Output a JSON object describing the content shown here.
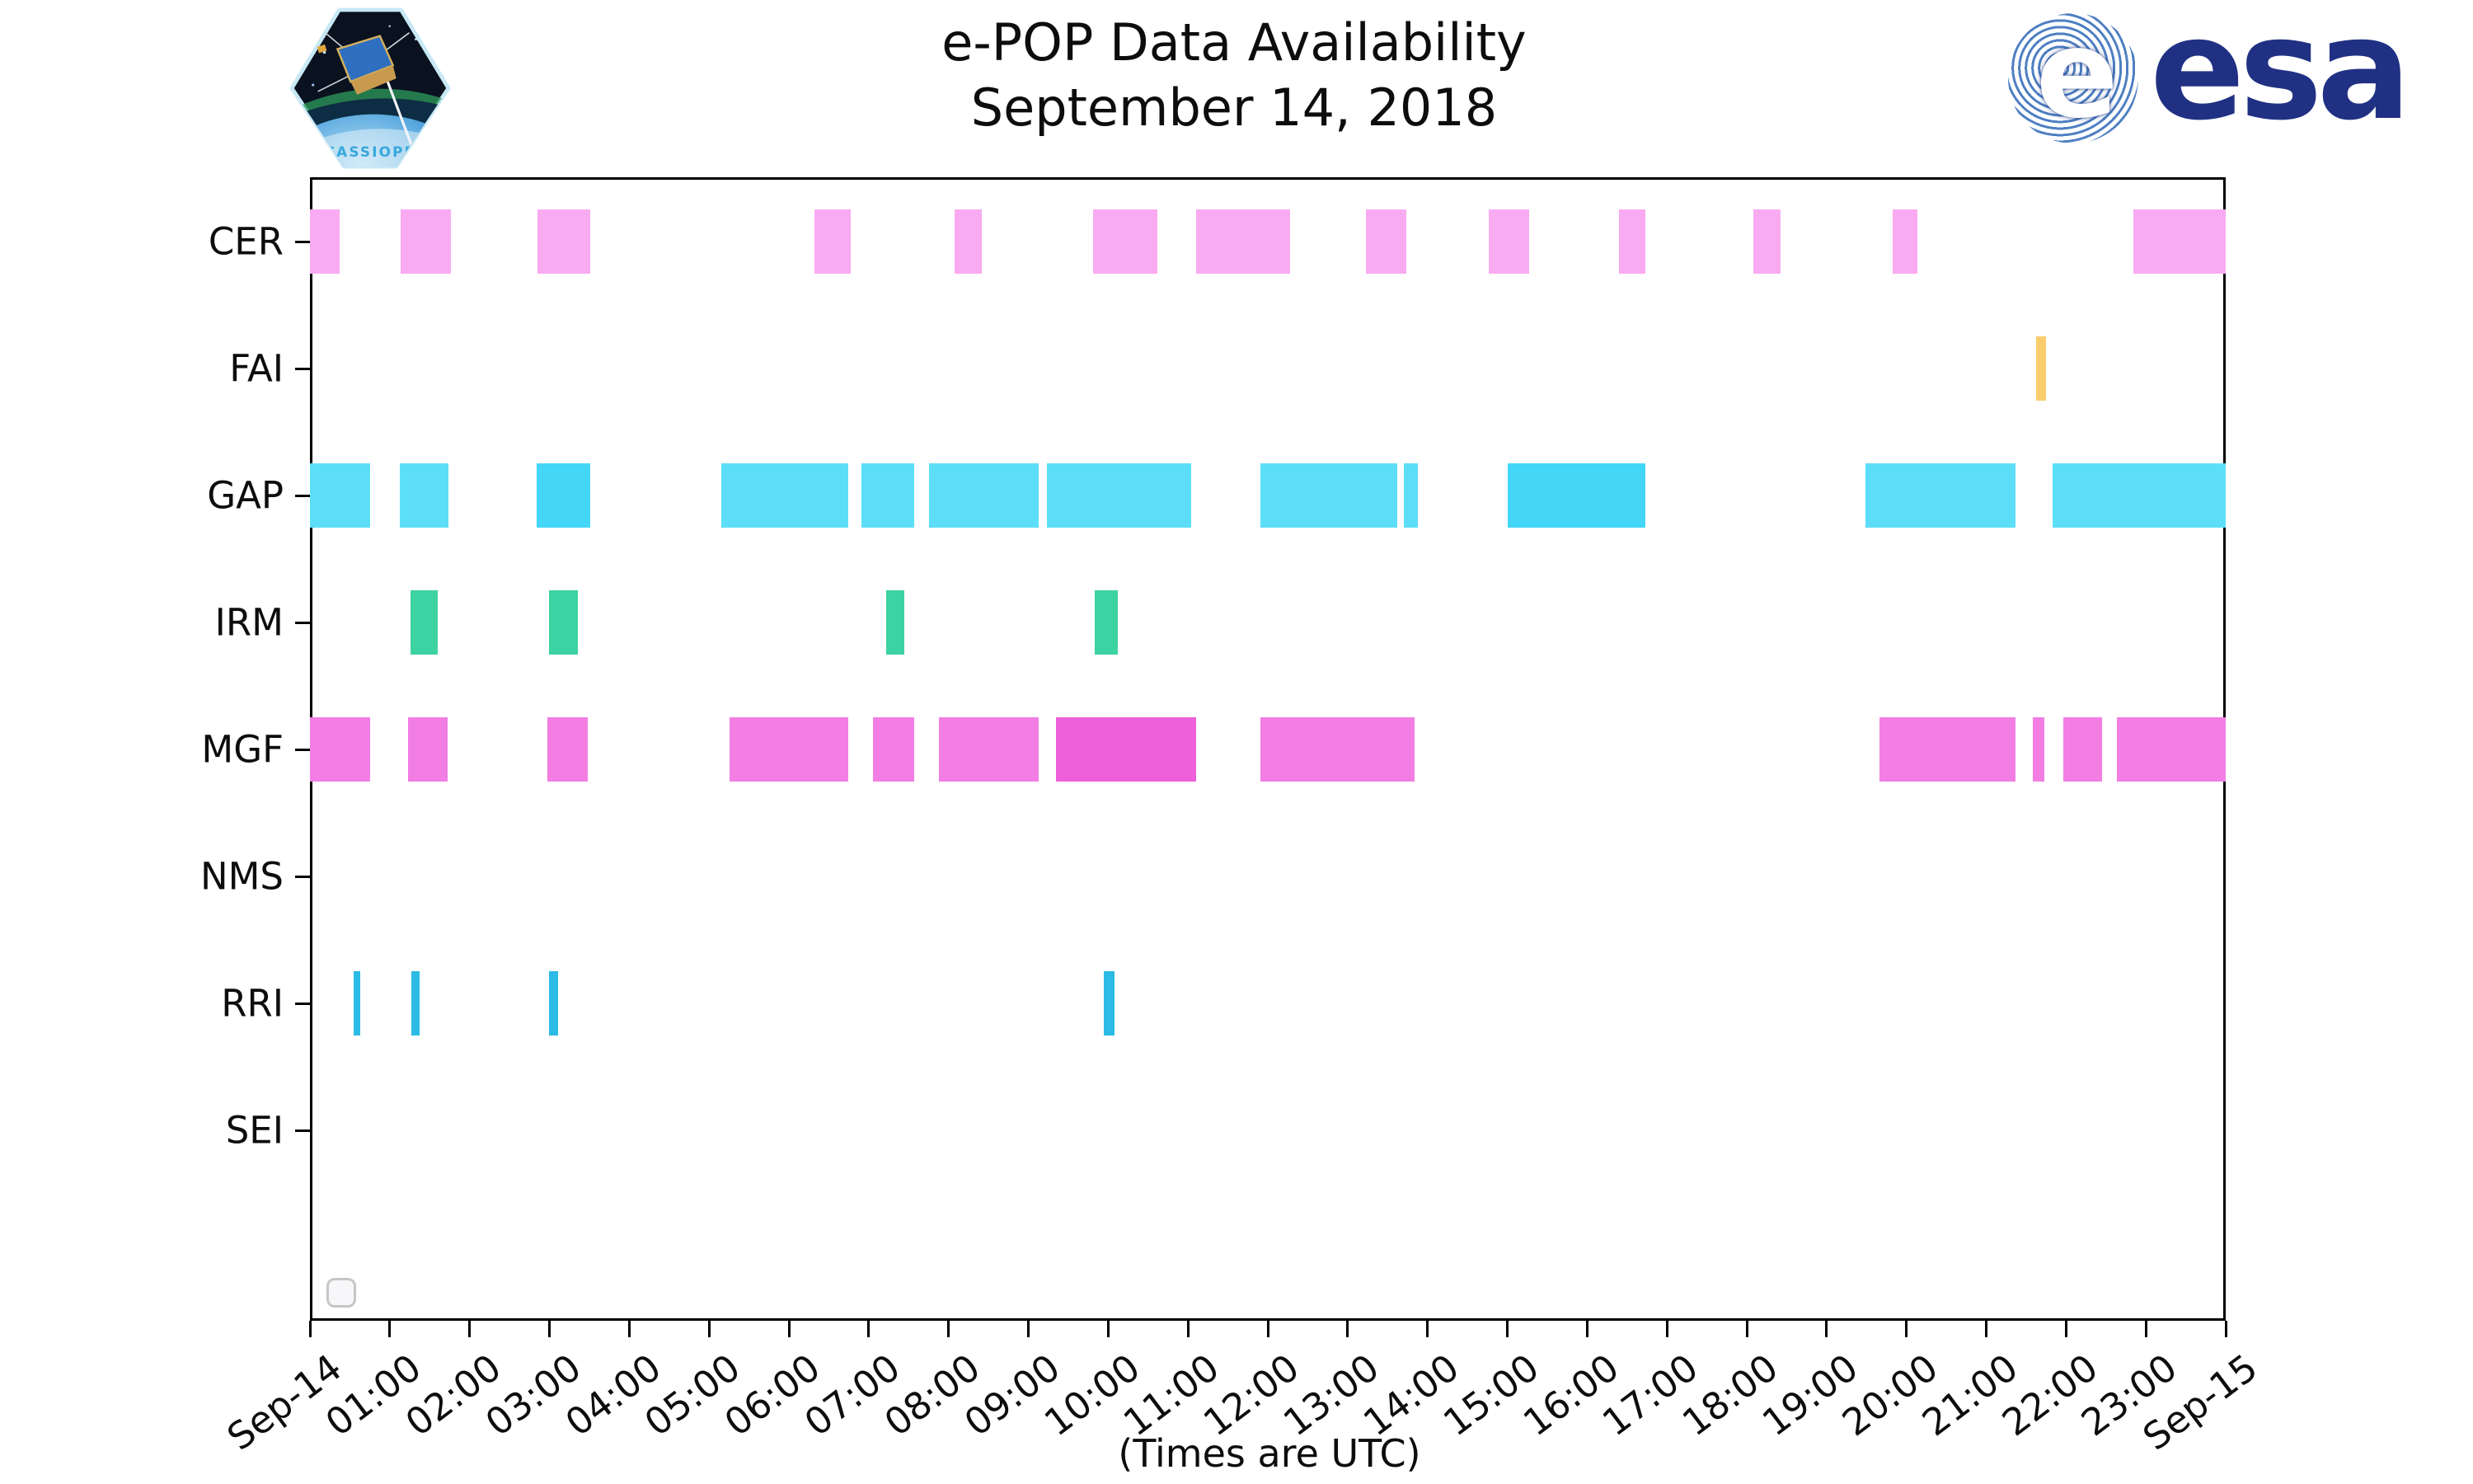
{
  "header": {
    "title_line1": "e-POP Data Availability",
    "title_line2": "September 14, 2018",
    "cassiope_patch_label": "CASSIOPE",
    "esa_logo_text": "esa"
  },
  "footer": {
    "caption": "(Times are UTC)"
  },
  "colors": {
    "esa_blue": "#203184",
    "esa_globe_stripe": "#4f7fc2",
    "axis_black": "#000000"
  },
  "chart_data": {
    "type": "timeline-availability (horizontal broken-bar / gantt chart, one row per instrument)",
    "title": "e-POP Data Availability — September 14, 2018",
    "x_axis": {
      "caption": "(Times are UTC)",
      "start_hour": 0,
      "end_hour": 24,
      "tick_interval_hours": 1,
      "tick_labels": [
        "Sep-14",
        "01:00",
        "02:00",
        "03:00",
        "04:00",
        "05:00",
        "06:00",
        "07:00",
        "08:00",
        "09:00",
        "10:00",
        "11:00",
        "12:00",
        "13:00",
        "14:00",
        "15:00",
        "16:00",
        "17:00",
        "18:00",
        "19:00",
        "20:00",
        "21:00",
        "22:00",
        "23:00",
        "Sep-15"
      ]
    },
    "y_axis": {
      "categories": [
        "CER",
        "FAI",
        "GAP",
        "IRM",
        "MGF",
        "NMS",
        "RRI",
        "SEI"
      ]
    },
    "grid": "off",
    "legend": "empty placeholder box at bottom-left of plot",
    "series": [
      {
        "instrument": "CER",
        "color": "#f9abf1",
        "intervals_hours": [
          [
            0.0,
            0.37
          ],
          [
            1.14,
            1.77
          ],
          [
            2.85,
            3.51
          ],
          [
            6.32,
            6.77
          ],
          [
            8.08,
            8.42
          ],
          [
            9.81,
            10.62
          ],
          [
            11.1,
            12.28
          ],
          [
            13.23,
            13.74
          ],
          [
            14.77,
            15.27
          ],
          [
            16.4,
            16.73
          ],
          [
            18.08,
            18.42
          ],
          [
            19.83,
            20.14
          ],
          [
            22.84,
            24.0
          ]
        ]
      },
      {
        "instrument": "FAI",
        "color": "#fbcd6d",
        "intervals_hours": [
          [
            21.62,
            21.75
          ]
        ]
      },
      {
        "instrument": "GAP",
        "color": "#5cdef8",
        "dark_color": "#44d6f6",
        "intervals_hours": [
          [
            0.0,
            0.75
          ],
          [
            1.12,
            1.73
          ],
          [
            2.84,
            3.51,
            "dark"
          ],
          [
            5.15,
            6.74
          ],
          [
            6.91,
            7.57
          ],
          [
            7.75,
            9.13
          ],
          [
            9.23,
            11.04
          ],
          [
            11.91,
            13.62
          ],
          [
            13.7,
            13.88
          ],
          [
            15.0,
            16.73,
            "dark"
          ],
          [
            19.49,
            21.37
          ],
          [
            21.83,
            24.0
          ]
        ]
      },
      {
        "instrument": "IRM",
        "color": "#3dd2a2",
        "intervals_hours": [
          [
            1.26,
            1.6
          ],
          [
            2.99,
            3.36
          ],
          [
            7.22,
            7.45
          ],
          [
            9.83,
            10.12
          ]
        ]
      },
      {
        "instrument": "MGF",
        "color": "#f27ee3",
        "dark_color": "#ee5fd9",
        "intervals_hours": [
          [
            0.0,
            0.75
          ],
          [
            1.23,
            1.73
          ],
          [
            2.97,
            3.48
          ],
          [
            5.26,
            6.74
          ],
          [
            7.05,
            7.57
          ],
          [
            7.88,
            9.13
          ],
          [
            9.35,
            11.1,
            "dark"
          ],
          [
            11.91,
            13.84
          ],
          [
            19.66,
            21.37
          ],
          [
            21.58,
            21.73
          ],
          [
            21.97,
            22.45
          ],
          [
            22.64,
            24.0
          ]
        ]
      },
      {
        "instrument": "NMS",
        "color": "#bbbbbb",
        "intervals_hours": []
      },
      {
        "instrument": "RRI",
        "color": "#2bbbe4",
        "intervals_hours": [
          [
            0.55,
            0.63
          ],
          [
            1.27,
            1.37
          ],
          [
            2.99,
            3.11
          ],
          [
            9.94,
            10.08
          ]
        ]
      },
      {
        "instrument": "SEI",
        "color": "#bbbbbb",
        "intervals_hours": []
      }
    ]
  }
}
